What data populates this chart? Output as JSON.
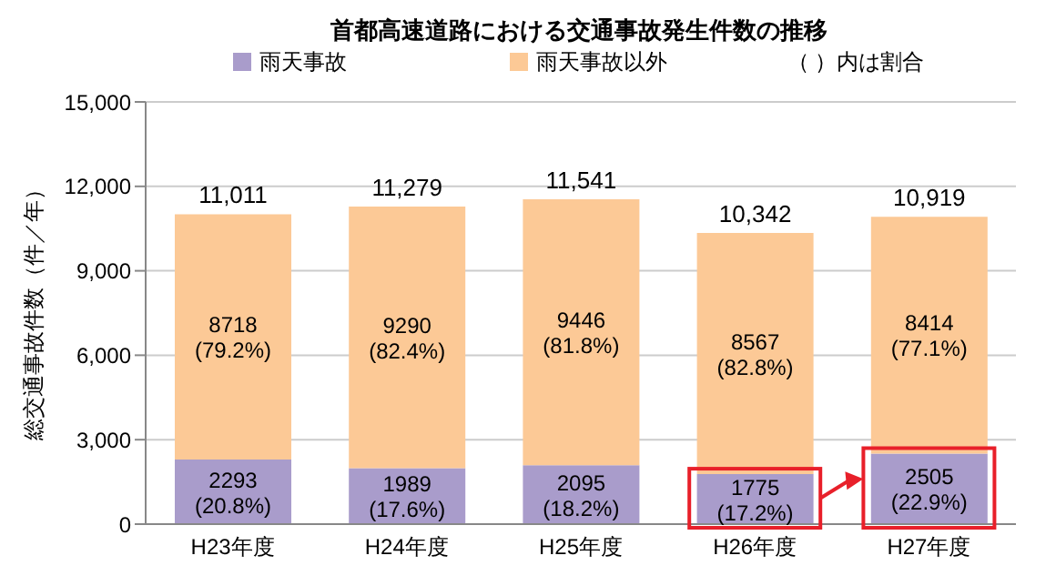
{
  "chart_data": {
    "type": "bar",
    "title": "首都高速道路における交通事故発生件数の推移",
    "ylabel": "総交通事故件数（件／年）",
    "categories": [
      "H23年度",
      "H24年度",
      "H25年度",
      "H26年度",
      "H27年度"
    ],
    "stacked": true,
    "series": [
      {
        "name": "雨天事故",
        "color": "#a99ccb",
        "values": [
          2293,
          1989,
          2095,
          1775,
          2505
        ],
        "value_labels": [
          "2293\n(20.8%)",
          "1989\n(17.6%)",
          "2095\n(18.2%)",
          "1775\n(17.2%)",
          "2505\n(22.9%)"
        ]
      },
      {
        "name": "雨天事故以外",
        "color": "#fcc996",
        "values": [
          8718,
          9290,
          9446,
          8567,
          8414
        ],
        "value_labels": [
          "8718\n(79.2%)",
          "9290\n(82.4%)",
          "9446\n(81.8%)",
          "8567\n(82.8%)",
          "8414\n(77.1%)"
        ]
      }
    ],
    "totals": [
      "11,011",
      "11,279",
      "11,541",
      "10,342",
      "10,919"
    ],
    "ylim": [
      0,
      15000
    ],
    "yticks": [
      {
        "value": 0,
        "label": "0"
      },
      {
        "value": 3000,
        "label": "3,000"
      },
      {
        "value": 6000,
        "label": "6,000"
      },
      {
        "value": 9000,
        "label": "9,000"
      },
      {
        "value": 12000,
        "label": "12,000"
      },
      {
        "value": 15000,
        "label": "15,000"
      }
    ],
    "grid": "y",
    "legend": "top",
    "annotations": [
      "（ ）内は割合"
    ]
  }
}
